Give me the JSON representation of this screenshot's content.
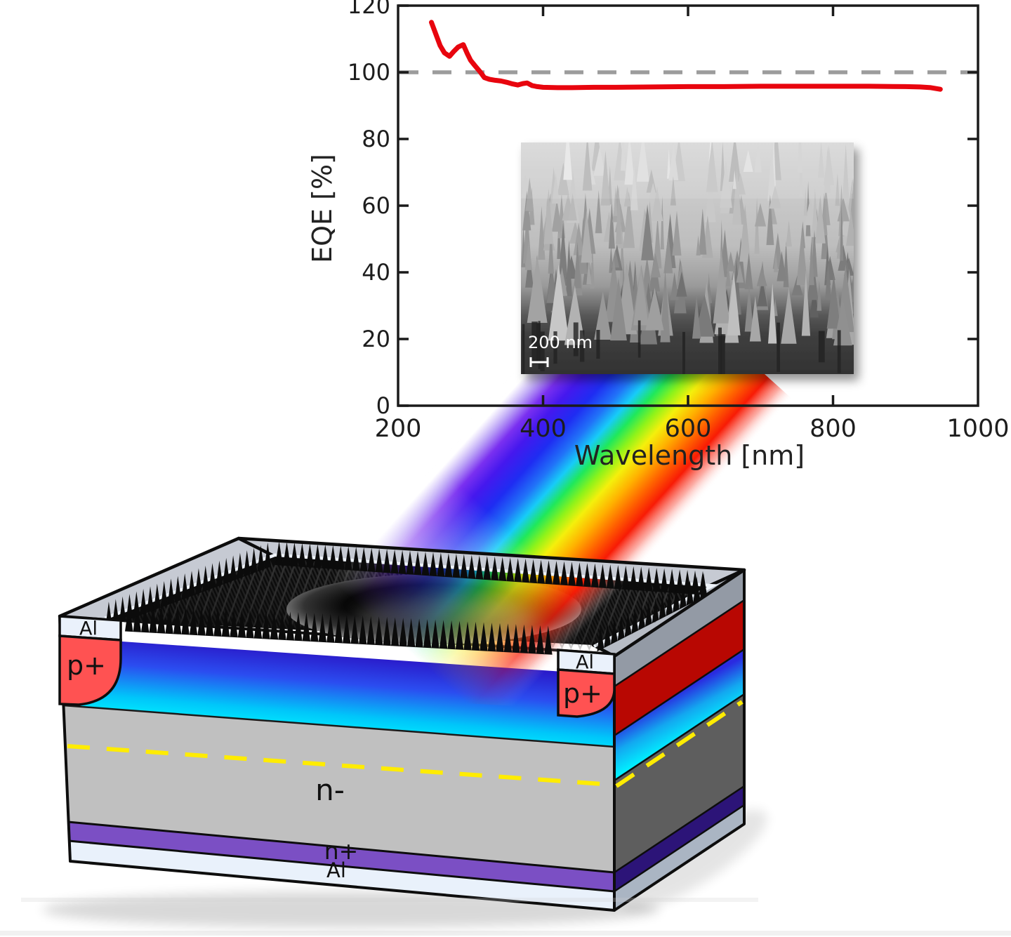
{
  "chart_data": {
    "type": "line",
    "title": "",
    "xlabel": "Wavelength [nm]",
    "ylabel": "EQE [%]",
    "xlim": [
      200,
      1000
    ],
    "ylim": [
      0,
      120
    ],
    "xticks": [
      200,
      400,
      600,
      800,
      1000
    ],
    "yticks": [
      0,
      20,
      40,
      60,
      80,
      100,
      120
    ],
    "grid": false,
    "legend": "none",
    "reference_line": {
      "y": 100,
      "color": "#9c9c9c",
      "style": "dashed"
    },
    "series": [
      {
        "name": "EQE",
        "color": "#e8050e",
        "x": [
          246,
          252,
          258,
          264,
          271,
          277,
          283,
          290,
          295,
          300,
          306,
          313,
          319,
          326,
          334,
          342,
          350,
          358,
          365,
          372,
          378,
          385,
          392,
          400,
          420,
          440,
          470,
          500,
          550,
          600,
          650,
          700,
          750,
          800,
          850,
          900,
          920,
          935,
          948
        ],
        "y": [
          115.0,
          111.5,
          108.0,
          105.8,
          104.8,
          106.3,
          107.6,
          108.3,
          105.8,
          103.6,
          102.0,
          100.2,
          98.4,
          97.9,
          97.6,
          97.4,
          97.0,
          96.5,
          96.2,
          96.6,
          96.8,
          96.0,
          95.7,
          95.5,
          95.4,
          95.4,
          95.5,
          95.5,
          95.6,
          95.7,
          95.7,
          95.8,
          95.8,
          95.8,
          95.8,
          95.7,
          95.6,
          95.4,
          94.9
        ]
      }
    ]
  },
  "sem": {
    "scale_label": "200 nm"
  },
  "device": {
    "labels": {
      "al_top_left": "Al",
      "p_plus_left": "p+",
      "al_top_right": "Al",
      "p_plus_right": "p+",
      "n_minus": "n-",
      "n_plus": "n+",
      "al_bottom": "Al"
    },
    "colors": {
      "p_plus": "#ff5252",
      "p_plus_side": "#b80702",
      "al_contact": "#eaf1fb",
      "n_minus_front": "#c0c0c0",
      "n_minus_side": "#5e5e5e",
      "n_plus_front": "#7b4fc4",
      "n_plus_side": "#2c1478",
      "al_bottom_front": "#e9f1fb",
      "al_bottom_side": "#aab5c3",
      "frame_top": "#c6cad3",
      "frame_side": "#939aa5",
      "junction_line": "#ffec00",
      "texture_black": "#0c0c0c"
    }
  },
  "beam": {
    "stops": [
      {
        "o": 0.0,
        "c": "#ffffff",
        "a": 0
      },
      {
        "o": 0.05,
        "c": "#ffffff",
        "a": 0.85
      },
      {
        "o": 0.11,
        "c": "#b9a0f6",
        "a": 0.95
      },
      {
        "o": 0.17,
        "c": "#7a30f0",
        "a": 1
      },
      {
        "o": 0.24,
        "c": "#4518ee",
        "a": 1
      },
      {
        "o": 0.33,
        "c": "#1f2cf2",
        "a": 1
      },
      {
        "o": 0.41,
        "c": "#2173f8",
        "a": 1
      },
      {
        "o": 0.47,
        "c": "#17ccf8",
        "a": 1
      },
      {
        "o": 0.53,
        "c": "#1fe85c",
        "a": 1
      },
      {
        "o": 0.59,
        "c": "#8ef31a",
        "a": 1
      },
      {
        "o": 0.65,
        "c": "#f4f00c",
        "a": 1
      },
      {
        "o": 0.72,
        "c": "#ffb100",
        "a": 1
      },
      {
        "o": 0.79,
        "c": "#ff6400",
        "a": 1
      },
      {
        "o": 0.86,
        "c": "#f81b05",
        "a": 1
      },
      {
        "o": 0.93,
        "c": "#fa5a4a",
        "a": 0.5
      },
      {
        "o": 1.0,
        "c": "#ffffff",
        "a": 0
      }
    ]
  }
}
